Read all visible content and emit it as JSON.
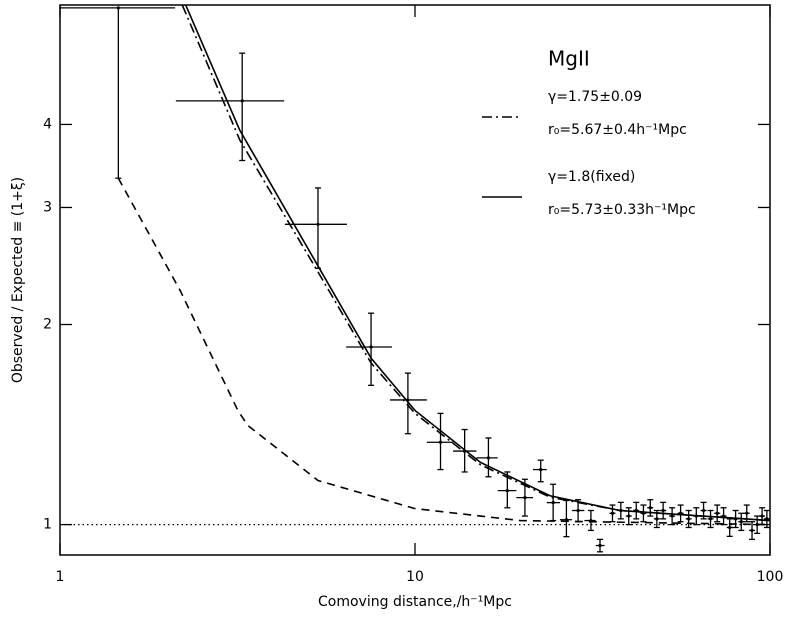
{
  "chart_data": {
    "type": "errorbar-line",
    "xlabel": "Comoving distance,/h⁻¹Mpc",
    "ylabel": "Observed / Expected ≡ (1+ξ)",
    "xlim": [
      1,
      100
    ],
    "ylim": [
      0.9,
      6.05
    ],
    "xscale": "log",
    "yscale": "log",
    "xticks": [
      1,
      10,
      100
    ],
    "yticks": [
      1,
      2,
      3,
      4
    ],
    "reference_line": 1,
    "legend_title": "MgII",
    "points": {
      "x": [
        1.46,
        3.26,
        5.33,
        7.52,
        9.55,
        11.8,
        13.8,
        16.1,
        18.2,
        20.4,
        22.6,
        24.5,
        26.7,
        28.8,
        31.3,
        33.2,
        36,
        38,
        40,
        42,
        44,
        46,
        48,
        50,
        53,
        56,
        59,
        62,
        65,
        68,
        71,
        74,
        77,
        80,
        83,
        86,
        89,
        92,
        95,
        98
      ],
      "values": [
        5.99,
        4.34,
        2.83,
        1.85,
        1.54,
        1.33,
        1.29,
        1.26,
        1.125,
        1.098,
        1.21,
        1.079,
        1.017,
        1.05,
        1.014,
        0.93,
        1.04,
        1.05,
        1.03,
        1.05,
        1.04,
        1.06,
        1.02,
        1.05,
        1.03,
        1.04,
        1.02,
        1.03,
        1.05,
        1.02,
        1.04,
        1.03,
        0.99,
        1.02,
        1.01,
        1.04,
        0.98,
        1.0,
        1.03,
        1.02
      ],
      "y_low": [
        3.32,
        3.53,
        2.43,
        1.62,
        1.37,
        1.21,
        1.2,
        1.18,
        1.06,
        1.03,
        1.16,
        1.014,
        0.959,
        1.01,
        0.98,
        0.91,
        1.01,
        1.02,
        1.0,
        1.02,
        1.01,
        1.03,
        0.99,
        1.02,
        1.0,
        1.01,
        0.99,
        1.0,
        1.02,
        0.99,
        1.01,
        1.0,
        0.96,
        0.99,
        0.98,
        1.01,
        0.95,
        0.97,
        1.0,
        0.99
      ],
      "y_high": [
        null,
        5.12,
        3.21,
        2.08,
        1.69,
        1.47,
        1.39,
        1.35,
        1.2,
        1.17,
        1.25,
        1.15,
        1.087,
        1.09,
        1.05,
        0.95,
        1.07,
        1.08,
        1.06,
        1.08,
        1.07,
        1.09,
        1.05,
        1.08,
        1.06,
        1.07,
        1.05,
        1.06,
        1.08,
        1.05,
        1.07,
        1.06,
        1.02,
        1.05,
        1.04,
        1.07,
        1.01,
        1.03,
        1.06,
        1.05
      ],
      "x_low": [
        1,
        2.12,
        4.3,
        6.4,
        8.5,
        10.8,
        12.8,
        14.9,
        17.1,
        19.3,
        21.5,
        23.5,
        25.6,
        27.7,
        30.0,
        32.3,
        null,
        null,
        null,
        null,
        null,
        null,
        null,
        null,
        null,
        null,
        null,
        null,
        null,
        null,
        null,
        null,
        null,
        null,
        null,
        null,
        null,
        null,
        null,
        null
      ],
      "x_high": [
        2.11,
        4.28,
        6.43,
        8.61,
        10.8,
        12.8,
        14.9,
        17.1,
        19.3,
        21.5,
        23.5,
        25.6,
        27.7,
        30.0,
        32.3,
        34.2,
        null,
        null,
        null,
        null,
        null,
        null,
        null,
        null,
        null,
        null,
        null,
        null,
        null,
        null,
        null,
        null,
        null,
        null,
        null,
        null,
        null,
        null,
        null,
        null
      ]
    },
    "series": [
      {
        "name": "γ=1.75±0.09",
        "detail": "r₀=5.67±0.4h⁻¹Mpc",
        "style": "dashdot",
        "color": "#000000",
        "x": [
          2.21,
          3.21,
          5.33,
          7.52,
          10,
          15.3,
          24,
          37.8,
          100
        ],
        "values": [
          6.05,
          3.79,
          2.4,
          1.75,
          1.47,
          1.23,
          1.1,
          1.05,
          1.014
        ]
      },
      {
        "name": "γ=1.8(fixed)",
        "detail": "r₀=5.73±0.33h⁻¹Mpc",
        "style": "solid",
        "color": "#000000",
        "x": [
          2.26,
          3.21,
          5.33,
          7.52,
          10,
          15.3,
          24,
          37.8,
          100
        ],
        "values": [
          6.05,
          3.92,
          2.45,
          1.78,
          1.485,
          1.24,
          1.105,
          1.05,
          1.014
        ]
      },
      {
        "style": "dashed",
        "color": "#000000",
        "x": [
          1.46,
          2.18,
          3.17,
          3.38,
          5.33,
          10,
          19.8,
          100
        ],
        "values": [
          3.32,
          2.25,
          1.485,
          1.41,
          1.165,
          1.057,
          1.014,
          1.0
        ]
      }
    ]
  }
}
